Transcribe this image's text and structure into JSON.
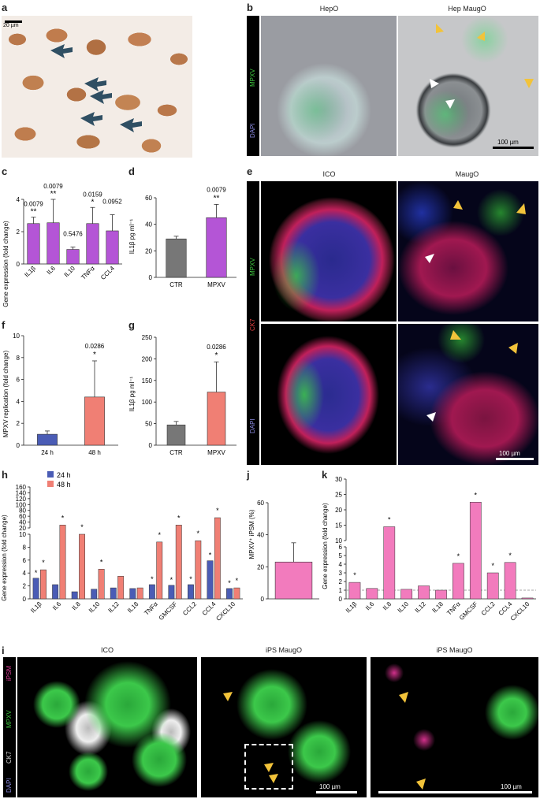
{
  "panels": {
    "a": "a",
    "b": "b",
    "c": "c",
    "d": "d",
    "e": "e",
    "f": "f",
    "g": "g",
    "h": "h",
    "i": "i",
    "j": "j",
    "k": "k"
  },
  "a": {
    "scale": "20 µm"
  },
  "b": {
    "col1": "HepO",
    "col2": "Hep MaugO",
    "ch1": "MPXV",
    "ch2": "DAPI",
    "scale": "100 µm"
  },
  "e": {
    "col1": "ICO",
    "col2": "MaugO",
    "ch1": "MPXV",
    "ch2": "CK7",
    "ch3": "DAPI",
    "scale": "100 µm"
  },
  "i": {
    "col1": "ICO",
    "col2": "iPS MaugO",
    "col3": "iPS MaugO",
    "ch1": "iPSM",
    "ch2": "MPXV",
    "ch3": "CK7",
    "ch4": "DAPI",
    "scale1": "100 µm",
    "scale2": "100 µm"
  },
  "colors": {
    "purple": "#b455d6",
    "grey": "#777777",
    "salmon": "#f07f74",
    "blue": "#4a5cb5",
    "pink": "#f27bbd"
  },
  "chart_data": [
    {
      "id": "c",
      "type": "bar",
      "ylabel": "Gene expression (fold change)",
      "categories": [
        "IL1β",
        "IL6",
        "IL10",
        "TNFα",
        "CCL4"
      ],
      "values": [
        2.5,
        2.55,
        0.9,
        2.5,
        2.05
      ],
      "errors": [
        0.4,
        1.45,
        0.15,
        1.0,
        1.0
      ],
      "pvalues": [
        "0.0079",
        "0.0079",
        "0.5476",
        "0.0159",
        "0.0952"
      ],
      "stars": [
        "**",
        "**",
        "",
        "*",
        ""
      ],
      "ylim": [
        0,
        4
      ],
      "yticks": [
        0,
        2,
        4
      ]
    },
    {
      "id": "d",
      "type": "bar",
      "ylabel": "IL1β pg ml⁻¹",
      "categories": [
        "CTR",
        "MPXV"
      ],
      "values": [
        29,
        45
      ],
      "errors": [
        2,
        10
      ],
      "pvalue": "0.0079",
      "stars": "**",
      "ylim": [
        0,
        60
      ],
      "yticks": [
        0,
        20,
        40,
        60
      ]
    },
    {
      "id": "f",
      "type": "bar",
      "ylabel": "MPXV replication (fold change)",
      "categories": [
        "24 h",
        "48 h"
      ],
      "values": [
        1.0,
        4.4
      ],
      "errors": [
        0.3,
        3.3
      ],
      "pvalue": "0.0286",
      "stars": "*",
      "ylim": [
        0,
        10
      ],
      "yticks": [
        0,
        2,
        4,
        6,
        8,
        10
      ]
    },
    {
      "id": "g",
      "type": "bar",
      "ylabel": "IL1β pg ml⁻¹",
      "categories": [
        "CTR",
        "MPXV"
      ],
      "values": [
        47,
        123
      ],
      "errors": [
        8,
        70
      ],
      "pvalue": "0.0286",
      "stars": "*",
      "ylim": [
        0,
        250
      ],
      "yticks": [
        0,
        50,
        100,
        150,
        200,
        250
      ]
    },
    {
      "id": "h",
      "type": "bar",
      "ylabel": "Gene expression (fold change)",
      "legend": [
        "24 h",
        "48 h"
      ],
      "categories": [
        "IL1β",
        "IL6",
        "IL8",
        "IL10",
        "IL12",
        "IL18",
        "TNFα",
        "GMCSF",
        "CCL2",
        "CCL4",
        "CXCL10"
      ],
      "series": [
        {
          "name": "24 h",
          "values": [
            3.2,
            2.2,
            1.1,
            1.5,
            1.7,
            1.6,
            2.2,
            2.1,
            2.2,
            5.9,
            1.6
          ]
        },
        {
          "name": "48 h",
          "values": [
            4.5,
            30,
            10,
            4.6,
            3.5,
            1.7,
            8.8,
            30,
            9,
            55,
            1.7
          ]
        }
      ],
      "stars24": [
        "*",
        "",
        "",
        "",
        "",
        "",
        "*",
        "*",
        "*",
        "*",
        "*"
      ],
      "stars48": [
        "*",
        "*",
        "*",
        "*",
        "",
        "",
        "*",
        "*",
        "*",
        "*",
        "*"
      ],
      "yticks_low": [
        0,
        2,
        4,
        6,
        8,
        10
      ],
      "yticks_high": [
        20,
        40,
        60,
        80,
        100,
        120,
        140,
        160
      ]
    },
    {
      "id": "j",
      "type": "bar",
      "ylabel": "MPXV⁺ iPSM (%)",
      "categories": [
        ""
      ],
      "values": [
        23
      ],
      "errors": [
        12
      ],
      "ylim": [
        0,
        60
      ],
      "yticks": [
        0,
        20,
        40,
        60
      ]
    },
    {
      "id": "k",
      "type": "bar",
      "ylabel": "Gene expression (fold change)",
      "categories": [
        "IL1β",
        "IL6",
        "IL8",
        "IL10",
        "IL12",
        "IL18",
        "TNFα",
        "GMCSF",
        "CCL2",
        "CCL4",
        "CXCL10"
      ],
      "values": [
        1.9,
        1.2,
        14.5,
        1.1,
        1.5,
        1.0,
        4.1,
        22.5,
        3.0,
        4.2,
        0.1
      ],
      "stars": [
        "*",
        "",
        "*",
        "",
        "",
        "",
        "*",
        "*",
        "*",
        "*",
        ""
      ],
      "yticks_low": [
        0,
        1,
        2,
        3,
        4,
        5,
        6
      ],
      "yticks_high": [
        10,
        15,
        20,
        25,
        30
      ]
    }
  ]
}
